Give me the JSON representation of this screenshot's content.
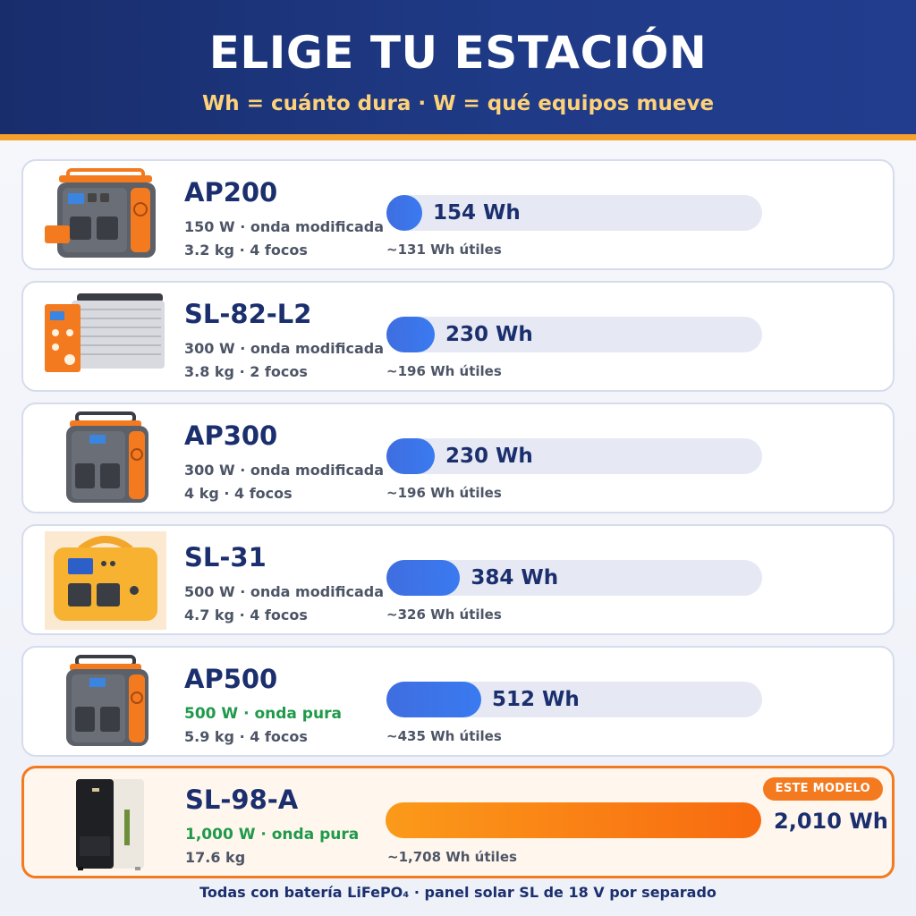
{
  "header": {
    "title": "ELIGE TU ESTACIÓN",
    "subtitle": "Wh = cuánto dura · W = qué equipos mueve"
  },
  "max_wh": 2010,
  "products": [
    {
      "name": "AP200",
      "spec_power": "150 W · onda modificada",
      "spec_weight": "3.2 kg · 4 focos",
      "wh_value": 154,
      "wh_label": "154 Wh",
      "useful": "~131 Wh útiles",
      "pure_wave": false,
      "image": "power-station-gray-orange-icon"
    },
    {
      "name": "SL-82-L2",
      "spec_power": "300 W · onda modificada",
      "spec_weight": "3.8 kg · 2 focos",
      "wh_value": 230,
      "wh_label": "230 Wh",
      "useful": "~196 Wh útiles",
      "pure_wave": false,
      "image": "power-station-silver-orange-icon"
    },
    {
      "name": "AP300",
      "spec_power": "300 W · onda modificada",
      "spec_weight": "4 kg · 4 focos",
      "wh_value": 230,
      "wh_label": "230 Wh",
      "useful": "~196 Wh útiles",
      "pure_wave": false,
      "image": "power-station-gray-orange-icon"
    },
    {
      "name": "SL-31",
      "spec_power": "500 W · onda modificada",
      "spec_weight": "4.7 kg · 4 focos",
      "wh_value": 384,
      "wh_label": "384 Wh",
      "useful": "~326 Wh útiles",
      "pure_wave": false,
      "image": "power-station-yellow-icon"
    },
    {
      "name": "AP500",
      "spec_power": "500 W · onda pura",
      "spec_weight": "5.9 kg · 4 focos",
      "wh_value": 512,
      "wh_label": "512 Wh",
      "useful": "~435 Wh útiles",
      "pure_wave": true,
      "image": "power-station-gray-orange-icon"
    },
    {
      "name": "SL-98-A",
      "spec_power": "1,000 W · onda pura",
      "spec_weight": "17.6 kg",
      "wh_value": 2010,
      "wh_label": "2,010 Wh",
      "useful": "~1,708 Wh útiles",
      "pure_wave": true,
      "image": "power-station-tower-icon",
      "badge": "ESTE MODELO"
    }
  ],
  "footer": "Todas con batería LiFePO₄ · panel solar SL de 18 V por separado",
  "colors": {
    "navy": "#1b2f6e",
    "accent": "#f47a1f",
    "green": "#1f9a4a",
    "blue_bar": "#3f6ee0"
  }
}
